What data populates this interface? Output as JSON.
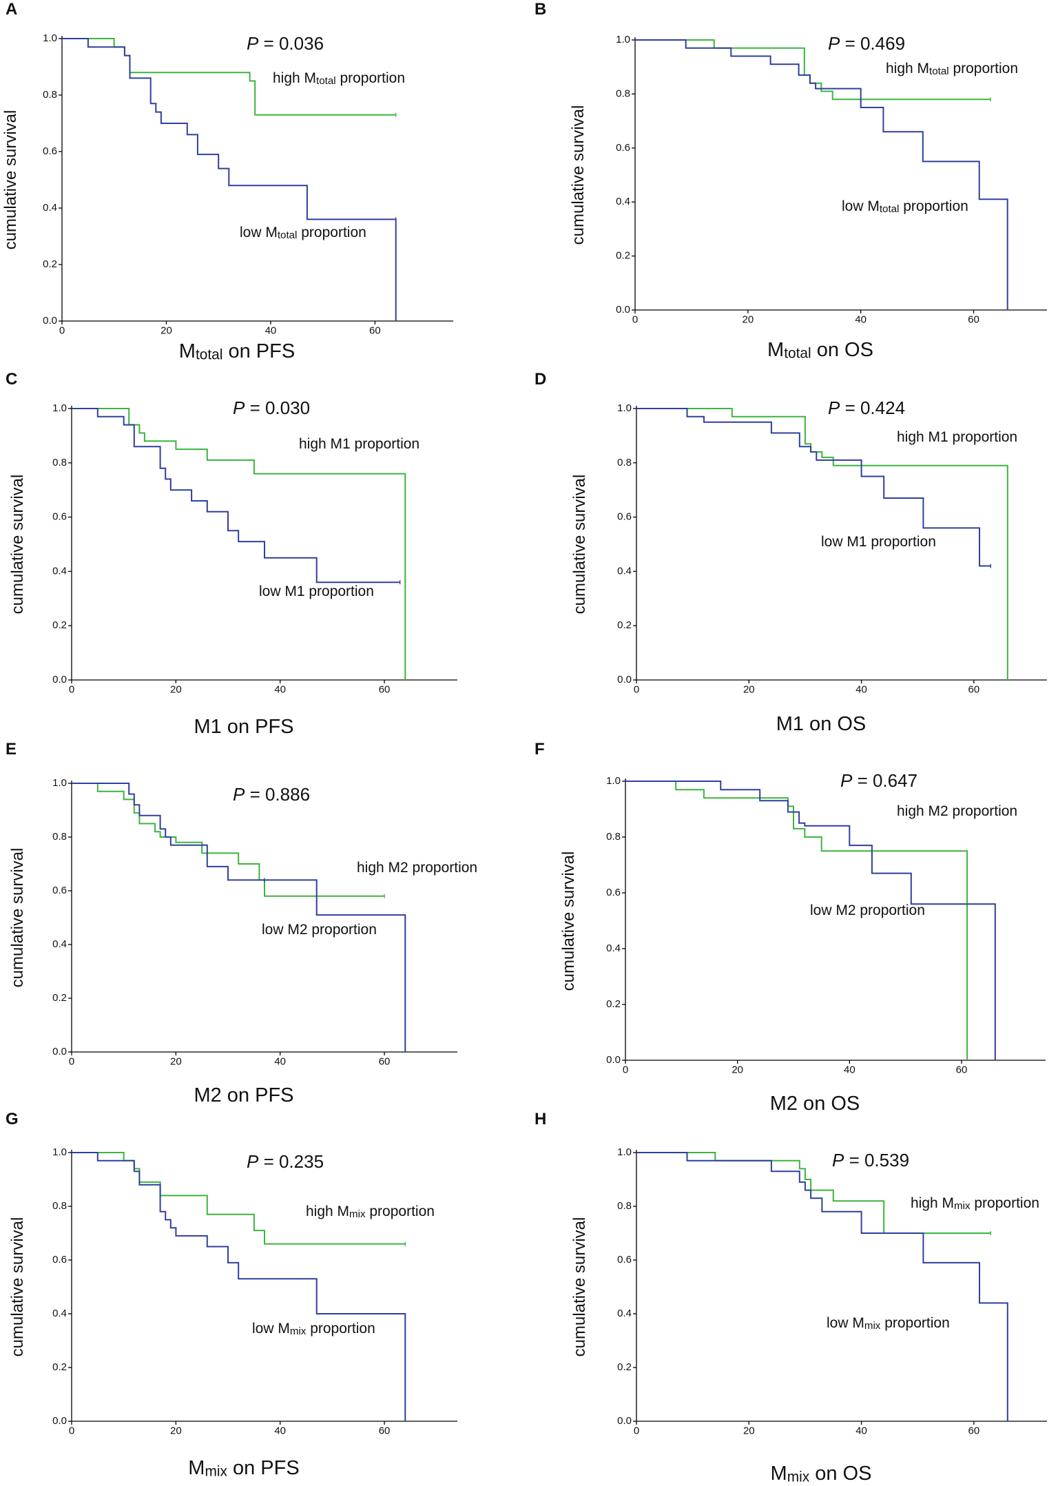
{
  "colors": {
    "high": "#3cb43c",
    "low": "#2e3f9c",
    "axis": "#000000"
  },
  "chart_data": [
    {
      "panel": "A",
      "type": "line",
      "step": true,
      "xlabel": "Mtotal on PFS",
      "ylabel": "cumulative survival",
      "xlim": [
        0,
        75
      ],
      "ylim": [
        0,
        1
      ],
      "xticks": [
        "0",
        "20",
        "40",
        "60"
      ],
      "yticks": [
        "0.0",
        "0.2",
        "0.4",
        "0.6",
        "0.8",
        "1.0"
      ],
      "p_prefix": "P",
      "p_value": "= 0.036",
      "series": [
        {
          "name": "high Mtotal proportion",
          "color_key": "high",
          "x": [
            0,
            10,
            12,
            13,
            36,
            37,
            64
          ],
          "values": [
            1.0,
            0.97,
            0.94,
            0.88,
            0.85,
            0.73,
            0.73
          ]
        },
        {
          "name": "low Mtotal proportion",
          "color_key": "low",
          "x": [
            0,
            5,
            12,
            13,
            17,
            18,
            19,
            24,
            26,
            30,
            32,
            47,
            64,
            64
          ],
          "values": [
            1.0,
            0.97,
            0.94,
            0.86,
            0.77,
            0.74,
            0.7,
            0.66,
            0.59,
            0.54,
            0.48,
            0.36,
            0.36,
            0.0
          ]
        }
      ]
    },
    {
      "panel": "B",
      "type": "line",
      "step": true,
      "xlabel": "Mtotal on OS",
      "ylabel": "cumulative survival",
      "xlim": [
        0,
        73
      ],
      "ylim": [
        0,
        1
      ],
      "xticks": [
        "0",
        "20",
        "40",
        "60"
      ],
      "yticks": [
        "0.0",
        "0.2",
        "0.4",
        "0.6",
        "0.8",
        "1.0"
      ],
      "p_prefix": "P",
      "p_value": "= 0.469",
      "series": [
        {
          "name": "high Mtotal proportion",
          "color_key": "high",
          "x": [
            0,
            14,
            30,
            31,
            33,
            35,
            63
          ],
          "values": [
            1.0,
            0.97,
            0.87,
            0.84,
            0.81,
            0.78,
            0.78
          ]
        },
        {
          "name": "low Mtotal proportion",
          "color_key": "low",
          "x": [
            0,
            9,
            17,
            24,
            29,
            31,
            32,
            40,
            44,
            51,
            61,
            66
          ],
          "values": [
            1.0,
            0.97,
            0.94,
            0.91,
            0.87,
            0.84,
            0.82,
            0.75,
            0.66,
            0.55,
            0.41,
            0.0
          ]
        }
      ]
    },
    {
      "panel": "C",
      "type": "line",
      "step": true,
      "xlabel": "M1 on PFS",
      "ylabel": "cumulative survival",
      "xlim": [
        0,
        74
      ],
      "ylim": [
        0,
        1
      ],
      "xticks": [
        "0",
        "20",
        "40",
        "60"
      ],
      "yticks": [
        "0.0",
        "0.2",
        "0.4",
        "0.6",
        "0.8",
        "1.0"
      ],
      "p_prefix": "P",
      "p_value": "= 0.030",
      "series": [
        {
          "name": "high M1 proportion",
          "color_key": "high",
          "x": [
            0,
            11,
            13,
            14,
            20,
            26,
            35,
            64
          ],
          "values": [
            1.0,
            0.94,
            0.91,
            0.88,
            0.85,
            0.81,
            0.76,
            0.0
          ]
        },
        {
          "name": "low M1 proportion",
          "color_key": "low",
          "x": [
            0,
            5,
            10,
            12,
            17,
            18,
            19,
            23,
            26,
            30,
            32,
            37,
            47,
            63
          ],
          "values": [
            1.0,
            0.97,
            0.94,
            0.86,
            0.78,
            0.74,
            0.7,
            0.66,
            0.62,
            0.55,
            0.51,
            0.45,
            0.36,
            0.36
          ]
        }
      ]
    },
    {
      "panel": "D",
      "type": "line",
      "step": true,
      "xlabel": "M1 on OS",
      "ylabel": "cumulative survival",
      "xlim": [
        0,
        73
      ],
      "ylim": [
        0,
        1
      ],
      "xticks": [
        "0",
        "20",
        "40",
        "60"
      ],
      "yticks": [
        "0.0",
        "0.2",
        "0.4",
        "0.6",
        "0.8",
        "1.0"
      ],
      "p_prefix": "P",
      "p_value": "= 0.424",
      "series": [
        {
          "name": "high M1 proportion",
          "color_key": "high",
          "x": [
            0,
            17,
            30,
            31,
            33,
            35,
            66
          ],
          "values": [
            1.0,
            0.97,
            0.87,
            0.84,
            0.82,
            0.79,
            0.0
          ]
        },
        {
          "name": "low M1 proportion",
          "color_key": "low",
          "x": [
            0,
            9,
            12,
            24,
            29,
            31,
            32,
            40,
            44,
            51,
            61,
            63
          ],
          "values": [
            1.0,
            0.97,
            0.95,
            0.91,
            0.86,
            0.84,
            0.81,
            0.75,
            0.67,
            0.56,
            0.42,
            0.42
          ]
        }
      ]
    },
    {
      "panel": "E",
      "type": "line",
      "step": true,
      "xlabel": "M2 on PFS",
      "ylabel": "cumulative survival",
      "xlim": [
        0,
        74
      ],
      "ylim": [
        0,
        1
      ],
      "xticks": [
        "0",
        "20",
        "40",
        "60"
      ],
      "yticks": [
        "0.0",
        "0.2",
        "0.4",
        "0.6",
        "0.8",
        "1.0"
      ],
      "p_prefix": "P",
      "p_value": "= 0.886",
      "series": [
        {
          "name": "high M2 proportion",
          "color_key": "high",
          "x": [
            0,
            5,
            10,
            12,
            13,
            16,
            17,
            20,
            25,
            32,
            36,
            37,
            60
          ],
          "values": [
            1.0,
            0.97,
            0.94,
            0.89,
            0.85,
            0.82,
            0.8,
            0.78,
            0.74,
            0.7,
            0.64,
            0.58,
            0.58
          ]
        },
        {
          "name": "low M2 proportion",
          "color_key": "low",
          "x": [
            0,
            11,
            12,
            13,
            17,
            18,
            19,
            26,
            30,
            37,
            47,
            64
          ],
          "values": [
            1.0,
            0.96,
            0.92,
            0.88,
            0.83,
            0.8,
            0.77,
            0.69,
            0.64,
            0.64,
            0.51,
            0.0
          ]
        }
      ]
    },
    {
      "panel": "F",
      "type": "line",
      "step": true,
      "xlabel": "M2 on OS",
      "ylabel": "cumulative survival",
      "xlim": [
        0,
        75
      ],
      "ylim": [
        0,
        1
      ],
      "xticks": [
        "0",
        "20",
        "40",
        "60"
      ],
      "yticks": [
        "0.0",
        "0.2",
        "0.4",
        "0.6",
        "0.8",
        "1.0"
      ],
      "p_prefix": "P",
      "p_value": "= 0.647",
      "series": [
        {
          "name": "high M2 proportion",
          "color_key": "high",
          "x": [
            0,
            9,
            14,
            29,
            30,
            32,
            35,
            61
          ],
          "values": [
            1.0,
            0.97,
            0.94,
            0.91,
            0.83,
            0.8,
            0.75,
            0.0
          ]
        },
        {
          "name": "low M2 proportion",
          "color_key": "low",
          "x": [
            0,
            17,
            24,
            29,
            31,
            32,
            40,
            44,
            51,
            66
          ],
          "values": [
            1.0,
            0.97,
            0.93,
            0.89,
            0.85,
            0.84,
            0.77,
            0.67,
            0.56,
            0.0
          ]
        }
      ]
    },
    {
      "panel": "G",
      "type": "line",
      "step": true,
      "xlabel": "Mmix on PFS",
      "ylabel": "cumulative survival",
      "xlim": [
        0,
        74
      ],
      "ylim": [
        0,
        1
      ],
      "xticks": [
        "0",
        "20",
        "40",
        "60"
      ],
      "yticks": [
        "0.0",
        "0.2",
        "0.4",
        "0.6",
        "0.8",
        "1.0"
      ],
      "p_prefix": "P",
      "p_value": "= 0.235",
      "series": [
        {
          "name": "high Mmix proportion",
          "color_key": "high",
          "x": [
            0,
            10,
            12,
            13,
            17,
            26,
            35,
            37,
            64
          ],
          "values": [
            1.0,
            0.97,
            0.94,
            0.89,
            0.84,
            0.77,
            0.71,
            0.66,
            0.66
          ]
        },
        {
          "name": "low Mmix proportion",
          "color_key": "low",
          "x": [
            0,
            5,
            12,
            13,
            17,
            18,
            19,
            20,
            26,
            30,
            32,
            47,
            64
          ],
          "values": [
            1.0,
            0.97,
            0.93,
            0.88,
            0.78,
            0.75,
            0.72,
            0.69,
            0.65,
            0.59,
            0.53,
            0.4,
            0.0
          ]
        }
      ]
    },
    {
      "panel": "H",
      "type": "line",
      "step": true,
      "xlabel": "Mmix on OS",
      "ylabel": "cumulative survival",
      "xlim": [
        0,
        73
      ],
      "ylim": [
        0,
        1
      ],
      "xticks": [
        "0",
        "20",
        "40",
        "60"
      ],
      "yticks": [
        "0.0",
        "0.2",
        "0.4",
        "0.6",
        "0.8",
        "1.0"
      ],
      "p_prefix": "P",
      "p_value": "= 0.539",
      "series": [
        {
          "name": "high Mmix proportion",
          "color_key": "high",
          "x": [
            0,
            14,
            29,
            30,
            31,
            35,
            44,
            63
          ],
          "values": [
            1.0,
            0.97,
            0.94,
            0.9,
            0.86,
            0.82,
            0.7,
            0.7
          ]
        },
        {
          "name": "low Mmix proportion",
          "color_key": "low",
          "x": [
            0,
            9,
            24,
            29,
            30,
            31,
            33,
            40,
            51,
            61,
            66
          ],
          "values": [
            1.0,
            0.97,
            0.93,
            0.89,
            0.86,
            0.83,
            0.78,
            0.7,
            0.59,
            0.44,
            0.0
          ]
        }
      ]
    }
  ]
}
